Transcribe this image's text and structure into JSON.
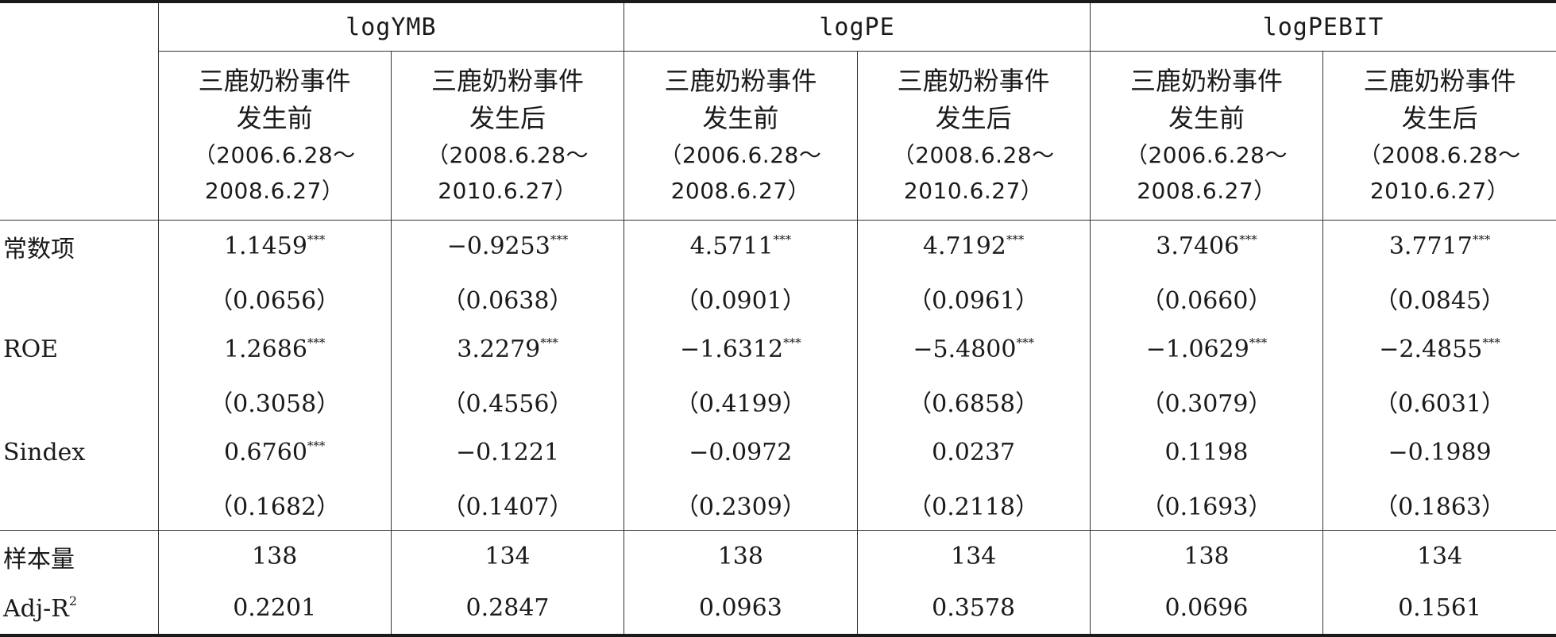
{
  "groups": [
    "logYMB",
    "logPE",
    "logPEBIT"
  ],
  "sub": {
    "before_line1": "三鹿奶粉事件",
    "before_line2": "发生前",
    "before_dates1": "（2006.6.28～",
    "before_dates2": "2008.6.27）",
    "after_line1": "三鹿奶粉事件",
    "after_line2": "发生后",
    "after_dates1": "（2008.6.28～",
    "after_dates2": "2010.6.27）"
  },
  "stars": "***",
  "rows": {
    "const": {
      "label": "常数项",
      "coef": [
        "1.1459",
        "−0.9253",
        "4.5711",
        "4.7192",
        "3.7406",
        "3.7717"
      ],
      "sig": [
        true,
        true,
        true,
        true,
        true,
        true
      ],
      "se": [
        "（0.0656）",
        "（0.0638）",
        "（0.0901）",
        "（0.0961）",
        "（0.0660）",
        "（0.0845）"
      ]
    },
    "roe": {
      "label": "ROE",
      "coef": [
        "1.2686",
        "3.2279",
        "−1.6312",
        "−5.4800",
        "−1.0629",
        "−2.4855"
      ],
      "sig": [
        true,
        true,
        true,
        true,
        true,
        true
      ],
      "se": [
        "（0.3058）",
        "（0.4556）",
        "（0.4199）",
        "（0.6858）",
        "（0.3079）",
        "（0.6031）"
      ]
    },
    "sindex": {
      "label": "Sindex",
      "coef": [
        "0.6760",
        "−0.1221",
        "−0.0972",
        "0.0237",
        "0.1198",
        "−0.1989"
      ],
      "sig": [
        true,
        false,
        false,
        false,
        false,
        false
      ],
      "se": [
        "（0.1682）",
        "（0.1407）",
        "（0.2309）",
        "（0.2118）",
        "（0.1693）",
        "（0.1863）"
      ]
    }
  },
  "n": {
    "label": "样本量",
    "values": [
      "138",
      "134",
      "138",
      "134",
      "138",
      "134"
    ]
  },
  "adjr2": {
    "label": "Adj-R",
    "sup": "2",
    "values": [
      "0.2201",
      "0.2847",
      "0.0963",
      "0.3578",
      "0.0696",
      "0.1561"
    ]
  }
}
